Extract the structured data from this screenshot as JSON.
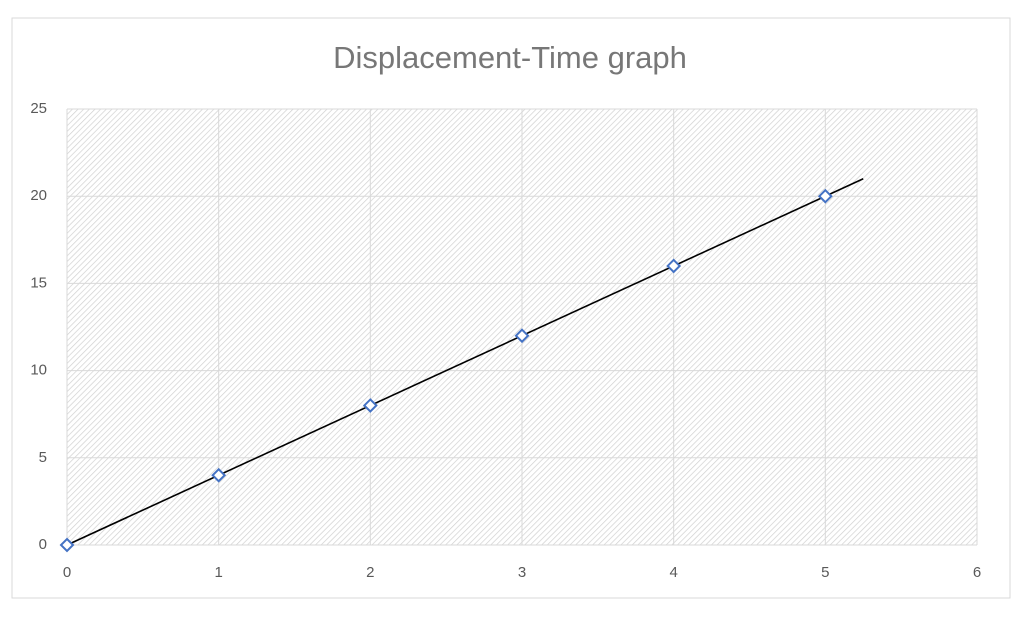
{
  "chart_data": {
    "type": "scatter",
    "title": "Displacement-Time graph",
    "x": [
      0,
      1,
      2,
      3,
      4,
      5
    ],
    "values": [
      0,
      4,
      8,
      12,
      16,
      20
    ],
    "color": "#4472c4",
    "marker": "diamond",
    "trendline": {
      "x": [
        0,
        5.25
      ],
      "y": [
        0,
        21
      ],
      "color": "#000000"
    },
    "xlim": [
      0,
      6
    ],
    "xticks": [
      0,
      1,
      2,
      3,
      4,
      5,
      6
    ],
    "ylim": [
      0,
      25
    ],
    "yticks": [
      0,
      5,
      10,
      15,
      20,
      25
    ],
    "grid": true
  }
}
